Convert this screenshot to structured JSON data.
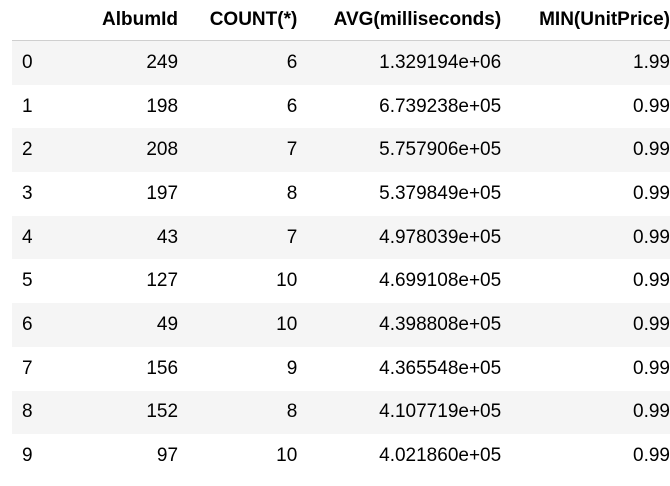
{
  "table": {
    "columns": [
      "",
      "AlbumId",
      "COUNT(*)",
      "AVG(milliseconds)",
      "MIN(UnitPrice)"
    ],
    "rows": [
      [
        "0",
        "249",
        "6",
        "1.329194e+06",
        "1.99"
      ],
      [
        "1",
        "198",
        "6",
        "6.739238e+05",
        "0.99"
      ],
      [
        "2",
        "208",
        "7",
        "5.757906e+05",
        "0.99"
      ],
      [
        "3",
        "197",
        "8",
        "5.379849e+05",
        "0.99"
      ],
      [
        "4",
        "43",
        "7",
        "4.978039e+05",
        "0.99"
      ],
      [
        "5",
        "127",
        "10",
        "4.699108e+05",
        "0.99"
      ],
      [
        "6",
        "49",
        "10",
        "4.398808e+05",
        "0.99"
      ],
      [
        "7",
        "156",
        "9",
        "4.365548e+05",
        "0.99"
      ],
      [
        "8",
        "152",
        "8",
        "4.107719e+05",
        "0.99"
      ],
      [
        "9",
        "97",
        "10",
        "4.021860e+05",
        "0.99"
      ]
    ]
  }
}
